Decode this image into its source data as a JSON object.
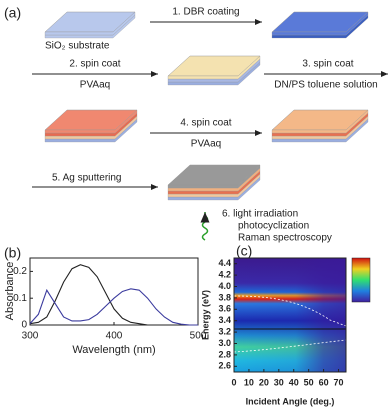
{
  "panels": {
    "a": "(a)",
    "b": "(b)",
    "c": "(c)"
  },
  "diagram": {
    "substrate_label": "SiO₂ substrate",
    "steps": [
      "1. DBR coating",
      "2. spin coat",
      "PVAaq",
      "3. spin coat",
      "DN/PS toluene solution",
      "4. spin coat",
      "PVAaq",
      "5. Ag sputtering",
      "6. light irradiation",
      "photocyclization",
      "Raman spectroscopy"
    ]
  },
  "chart_data": [
    {
      "type": "line",
      "xlabel": "Wavelength (nm)",
      "ylabel": "Absorbance",
      "x": [
        300,
        310,
        320,
        330,
        340,
        350,
        360,
        370,
        380,
        390,
        400,
        410,
        420,
        430,
        440,
        450,
        460,
        470,
        480,
        490,
        500
      ],
      "series": [
        {
          "color": "#222222",
          "values": [
            0.005,
            0.01,
            0.03,
            0.09,
            0.16,
            0.21,
            0.225,
            0.215,
            0.18,
            0.12,
            0.06,
            0.025,
            0.01,
            0.005,
            0,
            0,
            0,
            0,
            0,
            0,
            0
          ]
        },
        {
          "color": "#3b3b9e",
          "values": [
            0.005,
            0.04,
            0.13,
            0.08,
            0.03,
            0.015,
            0.015,
            0.02,
            0.04,
            0.07,
            0.1,
            0.125,
            0.135,
            0.13,
            0.1,
            0.06,
            0.03,
            0.01,
            0.003,
            0,
            0
          ]
        }
      ],
      "xlim": [
        300,
        500
      ],
      "xticks": [
        300,
        400,
        500
      ],
      "ylim": [
        0,
        0.25
      ],
      "yticks": [
        0,
        0.1,
        0.2
      ]
    },
    {
      "type": "heatmap",
      "xlabel": "Incident Angle (deg.)",
      "ylabel": "Energy (eV)",
      "xlim": [
        0,
        75
      ],
      "xticks": [
        0,
        10,
        20,
        30,
        40,
        50,
        60,
        70
      ],
      "ylim": [
        2.5,
        4.5
      ],
      "yticks": [
        2.6,
        2.8,
        {
          "value": 3,
          "label": "3.0"
        },
        3.2,
        3.4,
        3.6,
        3.8,
        {
          "value": 4,
          "label": "4.0"
        },
        4.2,
        4.4
      ]
    }
  ]
}
